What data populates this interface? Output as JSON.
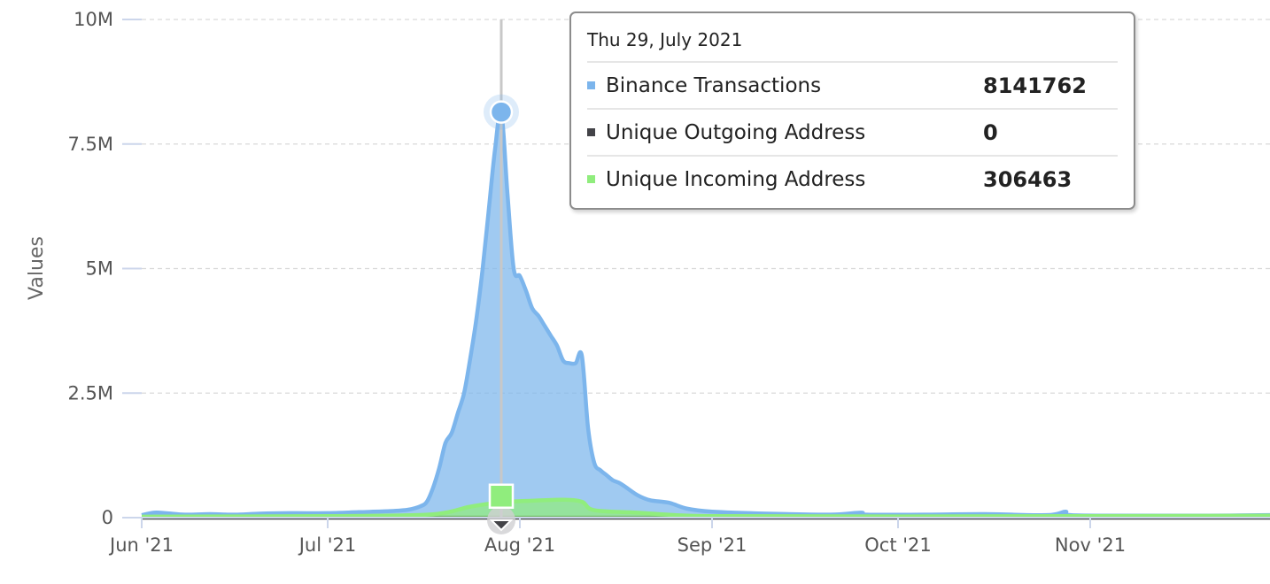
{
  "chart_data": {
    "type": "area",
    "ylabel": "Values",
    "xlabel": "",
    "ylim": [
      0,
      10000000
    ],
    "y_ticks": [
      {
        "value": 0,
        "label": "0"
      },
      {
        "value": 2500000,
        "label": "2.5M"
      },
      {
        "value": 5000000,
        "label": "5M"
      },
      {
        "value": 7500000,
        "label": "7.5M"
      },
      {
        "value": 10000000,
        "label": "10M"
      }
    ],
    "xlim": [
      "2021-06-01",
      "2021-11-30"
    ],
    "x_ticks": [
      {
        "date": "2021-06-01",
        "label": "Jun '21"
      },
      {
        "date": "2021-07-01",
        "label": "Jul '21"
      },
      {
        "date": "2021-08-01",
        "label": "Aug '21"
      },
      {
        "date": "2021-09-01",
        "label": "Sep '21"
      },
      {
        "date": "2021-10-01",
        "label": "Oct '21"
      },
      {
        "date": "2021-11-01",
        "label": "Nov '21"
      }
    ],
    "grid": true,
    "series": [
      {
        "name": "Binance Transactions",
        "color": "#7cb5ec",
        "points": [
          [
            "2021-06-01",
            50000
          ],
          [
            "2021-06-03",
            100000
          ],
          [
            "2021-06-05",
            90000
          ],
          [
            "2021-06-08",
            60000
          ],
          [
            "2021-06-12",
            70000
          ],
          [
            "2021-06-16",
            60000
          ],
          [
            "2021-06-20",
            80000
          ],
          [
            "2021-06-25",
            90000
          ],
          [
            "2021-07-01",
            90000
          ],
          [
            "2021-07-06",
            110000
          ],
          [
            "2021-07-11",
            130000
          ],
          [
            "2021-07-14",
            160000
          ],
          [
            "2021-07-16",
            230000
          ],
          [
            "2021-07-17",
            320000
          ],
          [
            "2021-07-18",
            600000
          ],
          [
            "2021-07-19",
            1000000
          ],
          [
            "2021-07-20",
            1500000
          ],
          [
            "2021-07-21",
            1700000
          ],
          [
            "2021-07-22",
            2100000
          ],
          [
            "2021-07-23",
            2500000
          ],
          [
            "2021-07-24",
            3200000
          ],
          [
            "2021-07-25",
            4000000
          ],
          [
            "2021-07-26",
            5000000
          ],
          [
            "2021-07-27",
            6200000
          ],
          [
            "2021-07-28",
            7400000
          ],
          [
            "2021-07-29",
            8141762
          ],
          [
            "2021-07-30",
            6500000
          ],
          [
            "2021-07-31",
            5000000
          ],
          [
            "2021-08-01",
            4850000
          ],
          [
            "2021-08-02",
            4550000
          ],
          [
            "2021-08-03",
            4200000
          ],
          [
            "2021-08-04",
            4050000
          ],
          [
            "2021-08-05",
            3850000
          ],
          [
            "2021-08-06",
            3650000
          ],
          [
            "2021-08-07",
            3450000
          ],
          [
            "2021-08-08",
            3150000
          ],
          [
            "2021-08-09",
            3100000
          ],
          [
            "2021-08-10",
            3100000
          ],
          [
            "2021-08-11",
            3250000
          ],
          [
            "2021-08-12",
            1800000
          ],
          [
            "2021-08-13",
            1100000
          ],
          [
            "2021-08-14",
            950000
          ],
          [
            "2021-08-15",
            850000
          ],
          [
            "2021-08-16",
            750000
          ],
          [
            "2021-08-17",
            700000
          ],
          [
            "2021-08-18",
            620000
          ],
          [
            "2021-08-20",
            450000
          ],
          [
            "2021-08-22",
            350000
          ],
          [
            "2021-08-25",
            300000
          ],
          [
            "2021-08-28",
            180000
          ],
          [
            "2021-09-01",
            120000
          ],
          [
            "2021-09-10",
            80000
          ],
          [
            "2021-09-20",
            60000
          ],
          [
            "2021-09-25",
            100000
          ],
          [
            "2021-09-26",
            60000
          ],
          [
            "2021-10-05",
            60000
          ],
          [
            "2021-10-15",
            70000
          ],
          [
            "2021-10-25",
            50000
          ],
          [
            "2021-10-28",
            120000
          ],
          [
            "2021-10-29",
            50000
          ],
          [
            "2021-11-10",
            40000
          ],
          [
            "2021-11-20",
            40000
          ],
          [
            "2021-11-30",
            50000
          ]
        ]
      },
      {
        "name": "Unique Outgoing Address",
        "color": "#434348",
        "points": [
          [
            "2021-06-01",
            0
          ],
          [
            "2021-11-30",
            0
          ]
        ]
      },
      {
        "name": "Unique Incoming Address",
        "color": "#90ed7d",
        "points": [
          [
            "2021-06-01",
            20000
          ],
          [
            "2021-07-01",
            30000
          ],
          [
            "2021-07-15",
            50000
          ],
          [
            "2021-07-20",
            100000
          ],
          [
            "2021-07-24",
            220000
          ],
          [
            "2021-07-29",
            306463
          ],
          [
            "2021-08-03",
            340000
          ],
          [
            "2021-08-08",
            360000
          ],
          [
            "2021-08-11",
            320000
          ],
          [
            "2021-08-13",
            150000
          ],
          [
            "2021-08-20",
            100000
          ],
          [
            "2021-08-28",
            40000
          ],
          [
            "2021-09-05",
            30000
          ],
          [
            "2021-10-01",
            25000
          ],
          [
            "2021-11-30",
            40000
          ]
        ]
      }
    ],
    "tooltip": {
      "date": "Thu 29, July 2021",
      "focus_date": "2021-07-29",
      "rows": [
        {
          "name": "Binance Transactions",
          "value": "8141762",
          "color": "#7cb5ec"
        },
        {
          "name": "Unique Outgoing Address",
          "value": "0",
          "color": "#434348"
        },
        {
          "name": "Unique Incoming Address",
          "value": "306463",
          "color": "#90ed7d"
        }
      ]
    }
  }
}
